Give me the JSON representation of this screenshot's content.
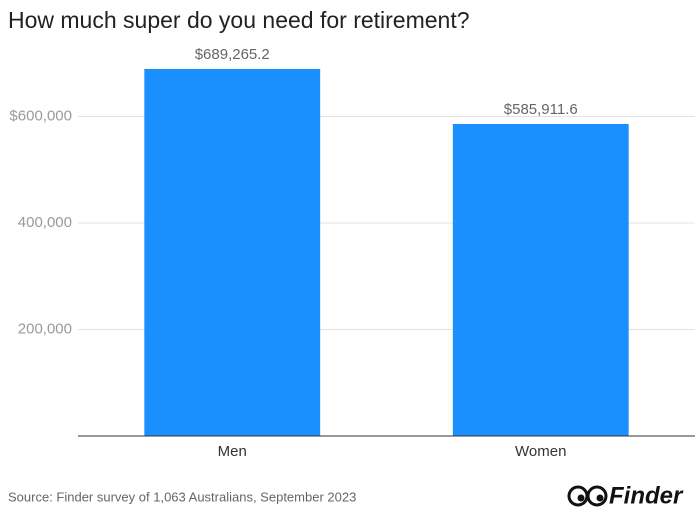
{
  "chart_data": {
    "type": "bar",
    "title": "How much super do you need for retirement?",
    "categories": [
      "Men",
      "Women"
    ],
    "values": [
      689265.2,
      585911.6
    ],
    "value_labels": [
      "$689,265.2",
      "$585,911.6"
    ],
    "color": "#1a8ffe",
    "ylim": [
      0,
      720000
    ],
    "yticks": [
      {
        "value": 200000,
        "label": "200,000"
      },
      {
        "value": 400000,
        "label": "400,000"
      },
      {
        "value": 600000,
        "label": "$600,000"
      }
    ],
    "grid": true,
    "source": "Source: Finder survey of 1,063 Australians, September 2023",
    "brand": "Finder"
  }
}
